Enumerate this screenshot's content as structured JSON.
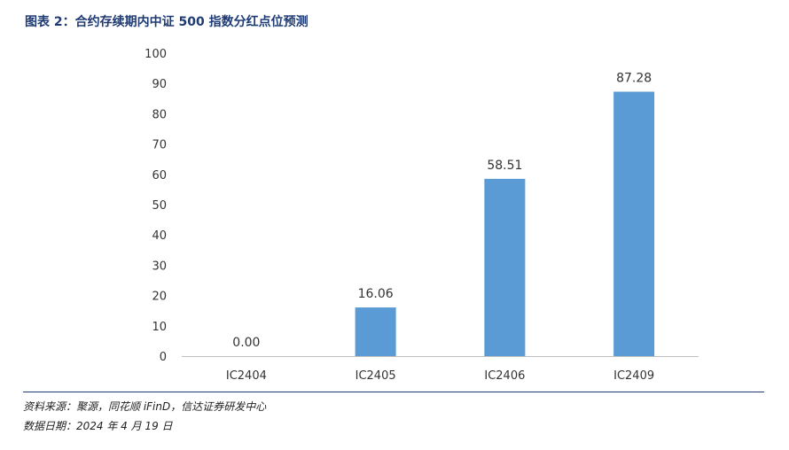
{
  "header": {
    "title": "图表 2：合约存续期内中证 500 指数分红点位预测"
  },
  "chart_data": {
    "type": "bar",
    "title": "",
    "xlabel": "",
    "ylabel": "",
    "categories": [
      "IC2404",
      "IC2405",
      "IC2406",
      "IC2409"
    ],
    "values": [
      0.0,
      16.06,
      58.51,
      87.28
    ],
    "value_labels": [
      "0.00",
      "16.06",
      "58.51",
      "87.28"
    ],
    "ylim": [
      0,
      100
    ],
    "yticks": [
      0,
      10,
      20,
      30,
      40,
      50,
      60,
      70,
      80,
      90,
      100
    ],
    "grid": false,
    "legend": "none",
    "bar_color": "#5b9bd5"
  },
  "footer": {
    "source": "资料来源：聚源，同花顺 iFinD，信达证券研发中心",
    "date": "数据日期：2024 年 4 月 19 日"
  },
  "colors": {
    "title": "#1f3b73",
    "axis": "#bfbfbf",
    "text": "#333333"
  }
}
